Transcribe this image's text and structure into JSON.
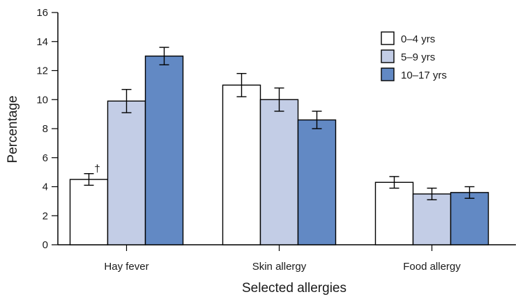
{
  "chart_data": {
    "type": "bar",
    "title": "",
    "xlabel": "Selected allergies",
    "ylabel": "Percentage",
    "ylim": [
      0,
      16
    ],
    "yticks": [
      0,
      2,
      4,
      6,
      8,
      10,
      12,
      14,
      16
    ],
    "categories": [
      "Hay fever",
      "Skin allergy",
      "Food allergy"
    ],
    "grid": false,
    "legend_position": "top-right",
    "series": [
      {
        "name": "0–4 yrs",
        "color": "#ffffff",
        "values": [
          4.5,
          11.0,
          4.3
        ],
        "error_low": [
          4.1,
          10.2,
          3.9
        ],
        "error_high": [
          4.9,
          11.8,
          4.7
        ]
      },
      {
        "name": "5–9 yrs",
        "color": "#c3cde6",
        "values": [
          9.9,
          10.0,
          3.5
        ],
        "error_low": [
          9.1,
          9.2,
          3.1
        ],
        "error_high": [
          10.7,
          10.8,
          3.9
        ]
      },
      {
        "name": "10–17 yrs",
        "color": "#6289c4",
        "values": [
          13.0,
          8.6,
          3.6
        ],
        "error_low": [
          12.4,
          8.0,
          3.2
        ],
        "error_high": [
          13.6,
          9.2,
          4.0
        ]
      }
    ],
    "annotations": [
      {
        "text": "†",
        "category": "Hay fever",
        "series": "0–4 yrs"
      }
    ]
  }
}
